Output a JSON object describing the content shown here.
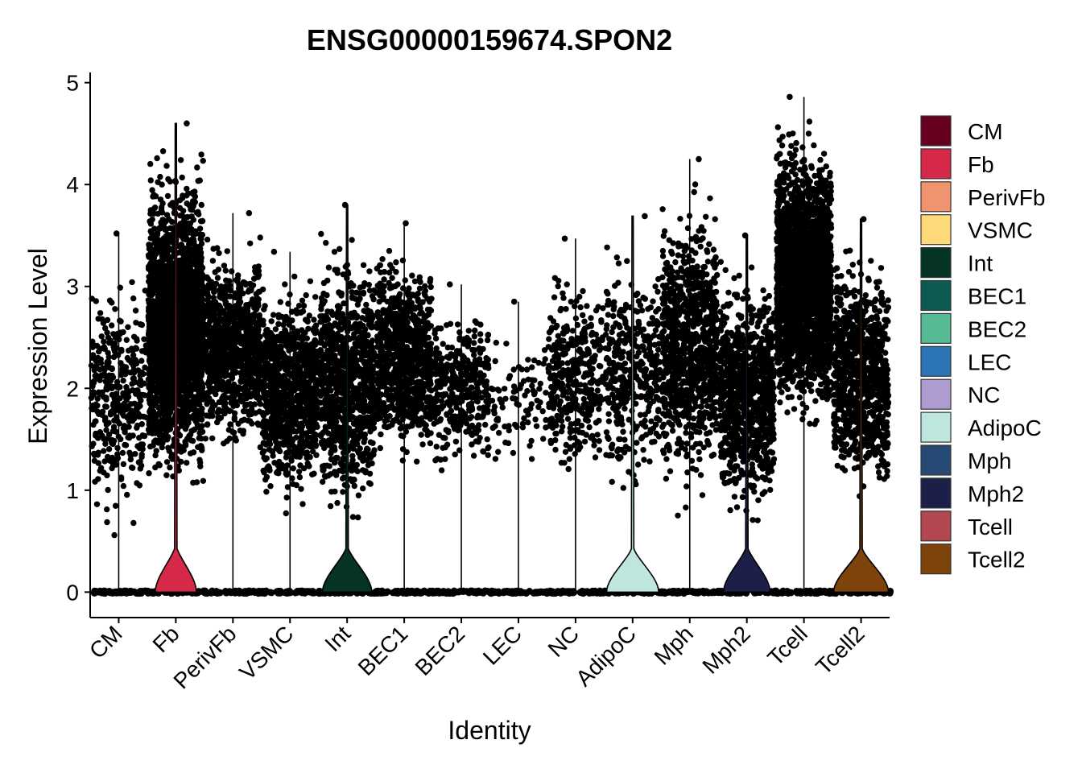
{
  "chart_data": {
    "type": "violin",
    "title": "ENSG00000159674.SPON2",
    "xlabel": "Identity",
    "ylabel": "Expression Level",
    "ylim": [
      -0.25,
      5.1
    ],
    "yticks": [
      0,
      1,
      2,
      3,
      4,
      5
    ],
    "legend_position": "right",
    "categories": [
      "CM",
      "Fb",
      "PerivFb",
      "VSMC",
      "Int",
      "BEC1",
      "BEC2",
      "LEC",
      "NC",
      "AdipoC",
      "Mph",
      "Mph2",
      "Tcell",
      "Tcell2"
    ],
    "colors": [
      "#67001f",
      "#d6294a",
      "#f09470",
      "#fdd97a",
      "#053326",
      "#0c5a50",
      "#55b993",
      "#2b74b6",
      "#ae9bcf",
      "#bfe6de",
      "#264a73",
      "#1c1f47",
      "#b24751",
      "#7e430b"
    ],
    "groups": [
      {
        "name": "CM",
        "max": 3.52,
        "points_min": 0.3,
        "points_max": 3.5,
        "density": "medium",
        "violin_width": 0
      },
      {
        "name": "Fb",
        "max": 4.6,
        "points_min": 0.6,
        "points_max": 4.6,
        "density": "very-high",
        "violin_width": 0.75
      },
      {
        "name": "PerivFb",
        "max": 3.72,
        "points_min": 1.1,
        "points_max": 3.72,
        "density": "high",
        "violin_width": 0
      },
      {
        "name": "VSMC",
        "max": 3.34,
        "points_min": 0.6,
        "points_max": 3.34,
        "density": "high",
        "violin_width": 0
      },
      {
        "name": "Int",
        "max": 3.8,
        "points_min": 0.4,
        "points_max": 3.8,
        "density": "high",
        "violin_width": 0.9
      },
      {
        "name": "BEC1",
        "max": 3.62,
        "points_min": 1.0,
        "points_max": 3.62,
        "density": "high",
        "violin_width": 0
      },
      {
        "name": "BEC2",
        "max": 3.02,
        "points_min": 0.95,
        "points_max": 3.0,
        "density": "medium",
        "violin_width": 0
      },
      {
        "name": "LEC",
        "max": 2.85,
        "points_min": 0.95,
        "points_max": 2.8,
        "density": "low",
        "violin_width": 0
      },
      {
        "name": "NC",
        "max": 3.47,
        "points_min": 0.75,
        "points_max": 3.47,
        "density": "medium",
        "violin_width": 0
      },
      {
        "name": "AdipoC",
        "max": 3.69,
        "points_min": 0.6,
        "points_max": 3.69,
        "density": "medium",
        "violin_width": 0.95
      },
      {
        "name": "Mph",
        "max": 4.25,
        "points_min": 0.6,
        "points_max": 4.25,
        "density": "high",
        "violin_width": 0
      },
      {
        "name": "Mph2",
        "max": 3.5,
        "points_min": 0.4,
        "points_max": 3.5,
        "density": "high",
        "violin_width": 0.85
      },
      {
        "name": "Tcell",
        "max": 4.86,
        "points_min": 1.3,
        "points_max": 4.86,
        "density": "very-high",
        "violin_width": 0
      },
      {
        "name": "Tcell2",
        "max": 3.66,
        "points_min": 0.6,
        "points_max": 3.66,
        "density": "high",
        "violin_width": 1.0
      }
    ]
  }
}
